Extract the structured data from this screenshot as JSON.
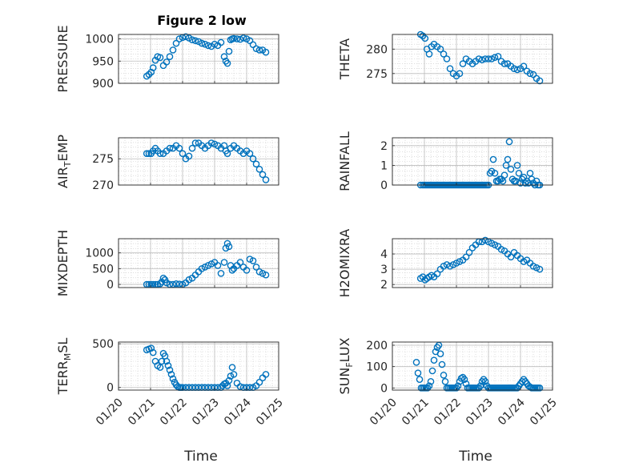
{
  "figure": {
    "title": "Figure 2 low",
    "xlabel": "Time",
    "marker_color": "#0072BD"
  },
  "chart_data": [
    {
      "id": "pressure",
      "type": "scatter",
      "ylabel": "PRESSURE",
      "ylim": [
        900,
        1010
      ],
      "yticks": [
        900,
        950,
        1000
      ],
      "xlim": [
        0,
        5
      ],
      "x": [
        0.88,
        0.95,
        1.02,
        1.08,
        1.15,
        1.22,
        1.3,
        1.4,
        1.5,
        1.6,
        1.7,
        1.8,
        1.9,
        2.0,
        2.1,
        2.2,
        2.3,
        2.4,
        2.5,
        2.6,
        2.7,
        2.8,
        2.9,
        3.0,
        3.1,
        3.2,
        3.3,
        3.35,
        3.4,
        3.45,
        3.5,
        3.55,
        3.6,
        3.7,
        3.8,
        3.9,
        4.0,
        4.1,
        4.2,
        4.3,
        4.4,
        4.5,
        4.6
      ],
      "y": [
        916,
        920,
        925,
        935,
        952,
        960,
        958,
        940,
        948,
        960,
        975,
        990,
        1000,
        1003,
        1005,
        1002,
        998,
        996,
        994,
        990,
        988,
        985,
        983,
        988,
        985,
        992,
        960,
        950,
        945,
        972,
        998,
        1000,
        1001,
        1000,
        999,
        1002,
        1000,
        996,
        987,
        978,
        975,
        975,
        970
      ]
    },
    {
      "id": "theta",
      "type": "scatter",
      "ylabel": "THETA",
      "ylim": [
        273,
        283
      ],
      "yticks": [
        275,
        280
      ],
      "xlim": [
        0,
        5
      ],
      "x": [
        0.88,
        0.95,
        1.02,
        1.08,
        1.15,
        1.22,
        1.3,
        1.4,
        1.5,
        1.6,
        1.7,
        1.8,
        1.9,
        2.0,
        2.1,
        2.2,
        2.3,
        2.4,
        2.5,
        2.6,
        2.7,
        2.8,
        2.9,
        3.0,
        3.1,
        3.2,
        3.3,
        3.4,
        3.5,
        3.6,
        3.7,
        3.8,
        3.9,
        4.0,
        4.1,
        4.2,
        4.3,
        4.4,
        4.5,
        4.6
      ],
      "y": [
        283,
        282.7,
        282.2,
        280,
        279,
        280.5,
        281,
        280.5,
        280,
        279,
        278,
        276,
        275,
        274.5,
        275,
        277,
        278,
        277.5,
        277,
        277.5,
        278,
        277.8,
        278,
        278,
        278,
        278.3,
        278.5,
        277.5,
        277,
        277,
        276.5,
        276,
        275.8,
        276,
        276.5,
        275.5,
        275,
        274.8,
        274,
        273.5
      ]
    },
    {
      "id": "airtemp",
      "type": "scatter",
      "ylabel": "AIR",
      "ylabel_sub": "T",
      "ylabel_suffix": "EMP",
      "ylim": [
        270,
        279
      ],
      "yticks": [
        270,
        275
      ],
      "xlim": [
        0,
        5
      ],
      "x": [
        0.88,
        0.95,
        1.02,
        1.08,
        1.15,
        1.22,
        1.3,
        1.4,
        1.5,
        1.6,
        1.7,
        1.8,
        1.9,
        2.0,
        2.1,
        2.2,
        2.3,
        2.4,
        2.5,
        2.6,
        2.7,
        2.8,
        2.9,
        3.0,
        3.1,
        3.2,
        3.3,
        3.35,
        3.4,
        3.5,
        3.6,
        3.7,
        3.8,
        3.9,
        4.0,
        4.1,
        4.2,
        4.3,
        4.4,
        4.5,
        4.6
      ],
      "y": [
        276,
        276,
        276,
        276.5,
        277,
        276.5,
        276,
        276,
        276.5,
        277,
        277,
        277.5,
        277,
        276,
        275,
        275.5,
        277,
        278,
        278,
        277.5,
        277,
        277.5,
        278,
        277.8,
        277.5,
        277,
        277.5,
        276.5,
        276,
        277,
        277.5,
        277,
        276.5,
        276,
        276.5,
        276,
        275,
        274,
        273,
        272,
        271
      ]
    },
    {
      "id": "rainfall",
      "type": "scatter",
      "ylabel": "RAINFALL",
      "ylim": [
        0,
        2.4
      ],
      "yticks": [
        0,
        1,
        2
      ],
      "xlim": [
        0,
        5
      ],
      "x": [
        0.88,
        0.95,
        1.0,
        1.05,
        1.1,
        1.15,
        1.2,
        1.25,
        1.3,
        1.35,
        1.4,
        1.45,
        1.5,
        1.55,
        1.6,
        1.65,
        1.7,
        1.75,
        1.8,
        1.85,
        1.9,
        1.95,
        2.0,
        2.05,
        2.1,
        2.15,
        2.2,
        2.25,
        2.3,
        2.35,
        2.4,
        2.45,
        2.5,
        2.55,
        2.6,
        2.65,
        2.7,
        2.75,
        2.8,
        2.85,
        2.9,
        2.95,
        3.0,
        3.05,
        3.1,
        3.15,
        3.2,
        3.25,
        3.3,
        3.35,
        3.4,
        3.45,
        3.5,
        3.55,
        3.6,
        3.65,
        3.7,
        3.75,
        3.8,
        3.85,
        3.9,
        3.95,
        4.0,
        4.05,
        4.1,
        4.15,
        4.2,
        4.25,
        4.3,
        4.35,
        4.4,
        4.45,
        4.5,
        4.55,
        4.6
      ],
      "y": [
        0,
        0,
        0,
        0,
        0,
        0,
        0,
        0,
        0,
        0,
        0,
        0,
        0,
        0,
        0,
        0,
        0,
        0,
        0,
        0,
        0,
        0,
        0,
        0,
        0,
        0,
        0,
        0,
        0,
        0,
        0,
        0,
        0,
        0,
        0,
        0,
        0,
        0,
        0,
        0,
        0,
        0,
        0,
        0.6,
        0.7,
        1.3,
        0.6,
        0.2,
        0.2,
        0.3,
        0.3,
        0.2,
        0.5,
        1.0,
        1.3,
        2.2,
        0.8,
        0.3,
        0.2,
        0.2,
        1.0,
        0.6,
        0.1,
        0.3,
        0.4,
        0.1,
        0.2,
        0.1,
        0.6,
        0.3,
        0.1,
        0,
        0.2,
        0,
        0
      ]
    },
    {
      "id": "mixdepth",
      "type": "scatter",
      "ylabel": "MIXDEPTH",
      "ylim": [
        -100,
        1450
      ],
      "yticks": [
        0,
        500,
        1000
      ],
      "xlim": [
        0,
        5
      ],
      "x": [
        0.88,
        0.95,
        1.02,
        1.08,
        1.15,
        1.22,
        1.3,
        1.35,
        1.4,
        1.45,
        1.5,
        1.6,
        1.7,
        1.8,
        1.9,
        2.0,
        2.1,
        2.2,
        2.3,
        2.4,
        2.5,
        2.6,
        2.7,
        2.8,
        2.9,
        3.0,
        3.1,
        3.2,
        3.3,
        3.35,
        3.4,
        3.45,
        3.5,
        3.55,
        3.6,
        3.7,
        3.8,
        3.9,
        4.0,
        4.1,
        4.2,
        4.3,
        4.4,
        4.5,
        4.6
      ],
      "y": [
        0,
        0,
        0,
        0,
        0,
        0,
        20,
        80,
        200,
        150,
        50,
        0,
        0,
        20,
        10,
        0,
        50,
        150,
        200,
        300,
        400,
        500,
        550,
        600,
        650,
        700,
        600,
        350,
        700,
        1150,
        1300,
        1200,
        600,
        450,
        500,
        600,
        700,
        550,
        450,
        800,
        750,
        550,
        400,
        350,
        300
      ]
    },
    {
      "id": "h2omixra",
      "type": "scatter",
      "ylabel": "H2OMIXRA",
      "ylim": [
        1.8,
        5.0
      ],
      "yticks": [
        2,
        3,
        4
      ],
      "xlim": [
        0,
        5
      ],
      "x": [
        0.88,
        0.95,
        1.02,
        1.08,
        1.15,
        1.22,
        1.3,
        1.4,
        1.5,
        1.6,
        1.7,
        1.8,
        1.9,
        2.0,
        2.1,
        2.2,
        2.3,
        2.4,
        2.5,
        2.6,
        2.7,
        2.8,
        2.9,
        3.0,
        3.1,
        3.2,
        3.3,
        3.4,
        3.5,
        3.6,
        3.7,
        3.8,
        3.9,
        4.0,
        4.1,
        4.2,
        4.3,
        4.4,
        4.5,
        4.6
      ],
      "y": [
        2.4,
        2.5,
        2.3,
        2.4,
        2.5,
        2.6,
        2.5,
        2.7,
        3.0,
        3.2,
        3.3,
        3.2,
        3.3,
        3.4,
        3.5,
        3.6,
        3.8,
        4.1,
        4.4,
        4.6,
        4.8,
        4.8,
        4.9,
        4.8,
        4.7,
        4.6,
        4.5,
        4.3,
        4.2,
        4.0,
        3.8,
        4.1,
        3.9,
        3.7,
        3.5,
        3.6,
        3.4,
        3.2,
        3.1,
        3.0
      ]
    },
    {
      "id": "terrmsl",
      "type": "scatter",
      "ylabel": "TERR",
      "ylabel_sub": "M",
      "ylabel_suffix": "SL",
      "ylim": [
        -30,
        520
      ],
      "yticks": [
        0,
        500
      ],
      "xlim": [
        0,
        5
      ],
      "x": [
        0.88,
        0.95,
        1.02,
        1.08,
        1.15,
        1.22,
        1.3,
        1.35,
        1.4,
        1.45,
        1.5,
        1.55,
        1.6,
        1.65,
        1.7,
        1.75,
        1.8,
        1.85,
        1.9,
        1.95,
        2.0,
        2.1,
        2.2,
        2.3,
        2.4,
        2.5,
        2.6,
        2.7,
        2.8,
        2.9,
        3.0,
        3.1,
        3.2,
        3.25,
        3.3,
        3.35,
        3.4,
        3.45,
        3.5,
        3.55,
        3.6,
        3.7,
        3.8,
        3.9,
        4.0,
        4.1,
        4.2,
        4.3,
        4.4,
        4.5,
        4.6
      ],
      "y": [
        430,
        440,
        450,
        400,
        300,
        250,
        230,
        300,
        390,
        360,
        300,
        250,
        200,
        150,
        100,
        60,
        30,
        10,
        0,
        0,
        0,
        0,
        0,
        0,
        0,
        0,
        0,
        0,
        0,
        0,
        0,
        0,
        0,
        20,
        40,
        50,
        20,
        80,
        130,
        230,
        150,
        50,
        10,
        0,
        0,
        0,
        0,
        20,
        60,
        110,
        150
      ]
    },
    {
      "id": "sunflux",
      "type": "scatter",
      "ylabel": "SUN",
      "ylabel_sub": "F",
      "ylabel_suffix": "LUX",
      "ylim": [
        -10,
        215
      ],
      "yticks": [
        0,
        100,
        200
      ],
      "xlim": [
        0,
        5
      ],
      "x": [
        0.75,
        0.8,
        0.85,
        0.9,
        0.95,
        1.0,
        1.05,
        1.1,
        1.15,
        1.2,
        1.25,
        1.3,
        1.35,
        1.4,
        1.45,
        1.5,
        1.55,
        1.6,
        1.65,
        1.7,
        1.75,
        1.8,
        1.85,
        1.9,
        1.95,
        2.0,
        2.05,
        2.1,
        2.15,
        2.2,
        2.25,
        2.3,
        2.35,
        2.4,
        2.45,
        2.5,
        2.55,
        2.6,
        2.65,
        2.7,
        2.75,
        2.8,
        2.85,
        2.9,
        2.95,
        3.0,
        3.05,
        3.1,
        3.15,
        3.2,
        3.25,
        3.3,
        3.35,
        3.4,
        3.45,
        3.5,
        3.55,
        3.6,
        3.65,
        3.7,
        3.75,
        3.8,
        3.85,
        3.9,
        3.95,
        4.0,
        4.05,
        4.1,
        4.15,
        4.2,
        4.25,
        4.3,
        4.35,
        4.4,
        4.45,
        4.5,
        4.55,
        4.6
      ],
      "y": [
        120,
        70,
        40,
        0,
        0,
        0,
        0,
        0,
        10,
        30,
        80,
        130,
        170,
        190,
        200,
        160,
        110,
        60,
        30,
        0,
        0,
        0,
        0,
        0,
        0,
        0,
        10,
        30,
        45,
        50,
        40,
        20,
        0,
        0,
        0,
        0,
        0,
        0,
        0,
        0,
        10,
        30,
        40,
        30,
        10,
        0,
        0,
        0,
        0,
        0,
        0,
        0,
        0,
        0,
        0,
        0,
        0,
        0,
        0,
        0,
        0,
        0,
        0,
        0,
        10,
        20,
        30,
        40,
        30,
        20,
        10,
        5,
        0,
        0,
        0,
        0,
        0,
        0
      ]
    }
  ],
  "xticks": {
    "labels": [
      "01/20",
      "01/21",
      "01/22",
      "01/23",
      "01/24",
      "01/25"
    ],
    "positions": [
      0,
      1,
      2,
      3,
      4,
      5
    ]
  }
}
